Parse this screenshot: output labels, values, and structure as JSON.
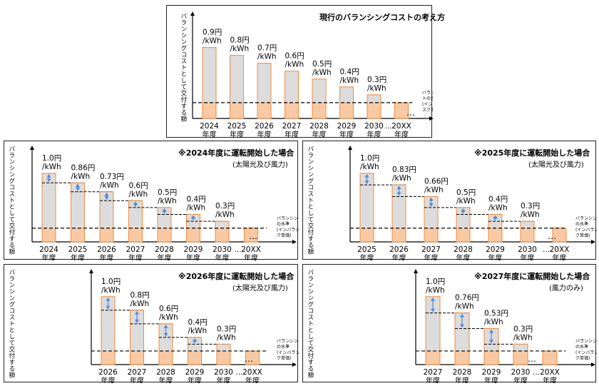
{
  "ylabel": "バランシングコストとして交付する額",
  "threshold_label_full": [
    "バランシングコスト",
    "の水準",
    "(インバランスリス",
    "ク単価)"
  ],
  "threshold_label_top": [
    "バランシングコス",
    "トの水準",
    "(インバランスリ",
    "スク単価)"
  ],
  "year_suffix": "年度",
  "ellipsis": "…",
  "chart_data": [
    {
      "type": "bar",
      "title": "現行のバランシングコストの考え方",
      "subtitle": "",
      "categories": [
        "2024",
        "2025",
        "2026",
        "2027",
        "2028",
        "2029",
        "2030",
        "20XX"
      ],
      "values": [
        0.9,
        0.8,
        0.7,
        0.6,
        0.5,
        0.4,
        0.3,
        0.2
      ],
      "value_labels": [
        [
          "0.9円",
          "/kWh"
        ],
        [
          "0.8円",
          "/kWh"
        ],
        [
          "0.7円",
          "/kWh"
        ],
        [
          "0.6円",
          "/kWh"
        ],
        [
          "0.5円",
          "/kWh"
        ],
        [
          "0.4円",
          "/kWh"
        ],
        [
          "0.3円",
          "/kWh"
        ],
        [
          "",
          ""
        ]
      ],
      "base_value": 0.2,
      "ylim": [
        0,
        1.05
      ],
      "colors": {
        "bar": "#dcdcdc",
        "base": "#f9c9a3",
        "outline": "#f08a3c",
        "arrow": "#5a8ad0"
      }
    },
    {
      "type": "bar",
      "title": "※2024年度に運転開始した場合",
      "subtitle": "(太陽光及び風力)",
      "categories": [
        "2024",
        "2025",
        "2026",
        "2027",
        "2028",
        "2029",
        "2030",
        "20XX"
      ],
      "values": [
        1.0,
        0.86,
        0.73,
        0.6,
        0.5,
        0.4,
        0.3,
        0.2
      ],
      "value_labels": [
        [
          "1.0円",
          "/kWh"
        ],
        [
          "0.86円",
          "/kWh"
        ],
        [
          "0.73円",
          "/kWh"
        ],
        [
          "0.6円",
          "/kWh"
        ],
        [
          "0.5円",
          "/kWh"
        ],
        [
          "0.4円",
          "/kWh"
        ],
        [
          "0.3円",
          "/kWh"
        ],
        [
          "",
          ""
        ]
      ],
      "base_value": 0.2,
      "ylim": [
        0,
        1.05
      ],
      "colors": {
        "bar": "#dcdcdc",
        "base": "#f9c9a3",
        "outline": "#f08a3c",
        "arrow": "#5a8ad0"
      }
    },
    {
      "type": "bar",
      "title": "※2025年度に運転開始した場合",
      "subtitle": "(太陽光及び風力)",
      "categories": [
        "2025",
        "2026",
        "2027",
        "2028",
        "2029",
        "2030",
        "20XX"
      ],
      "values": [
        1.0,
        0.83,
        0.66,
        0.5,
        0.4,
        0.3,
        0.2
      ],
      "value_labels": [
        [
          "1.0円",
          "/kWh"
        ],
        [
          "0.83円",
          "/kWh"
        ],
        [
          "0.66円",
          "/kWh"
        ],
        [
          "0.5円",
          "/kWh"
        ],
        [
          "0.4円",
          "/kWh"
        ],
        [
          "0.3円",
          "/kWh"
        ],
        [
          "",
          ""
        ]
      ],
      "base_value": 0.2,
      "ylim": [
        0,
        1.05
      ],
      "colors": {
        "bar": "#dcdcdc",
        "base": "#f9c9a3",
        "outline": "#f08a3c",
        "arrow": "#5a8ad0"
      }
    },
    {
      "type": "bar",
      "title": "※2026年度に運転開始した場合",
      "subtitle": "(太陽光及び風力)",
      "categories": [
        "2026",
        "2027",
        "2028",
        "2029",
        "2030",
        "20XX"
      ],
      "values": [
        1.0,
        0.8,
        0.6,
        0.4,
        0.3,
        0.2
      ],
      "value_labels": [
        [
          "1.0円",
          "/kWh"
        ],
        [
          "0.8円",
          "/kWh"
        ],
        [
          "0.6円",
          "/kWh"
        ],
        [
          "0.4円",
          "/kWh"
        ],
        [
          "0.3円",
          "/kWh"
        ],
        [
          "",
          ""
        ]
      ],
      "base_value": 0.2,
      "ylim": [
        0,
        1.05
      ],
      "colors": {
        "bar": "#dcdcdc",
        "base": "#f9c9a3",
        "outline": "#f08a3c",
        "arrow": "#5a8ad0"
      }
    },
    {
      "type": "bar",
      "title": "※2027年度に運転開始した場合",
      "subtitle": "(風力のみ)",
      "categories": [
        "2027",
        "2028",
        "2029",
        "2030",
        "20XX"
      ],
      "values": [
        1.0,
        0.76,
        0.53,
        0.3,
        0.2
      ],
      "value_labels": [
        [
          "1.0円",
          "/kWh"
        ],
        [
          "0.76円",
          "/kWh"
        ],
        [
          "0.53円",
          "/kWh"
        ],
        [
          "0.3円",
          "/kWh"
        ],
        [
          "",
          ""
        ]
      ],
      "base_value": 0.2,
      "ylim": [
        0,
        1.05
      ],
      "colors": {
        "bar": "#dcdcdc",
        "base": "#f9c9a3",
        "outline": "#f08a3c",
        "arrow": "#5a8ad0"
      }
    }
  ]
}
